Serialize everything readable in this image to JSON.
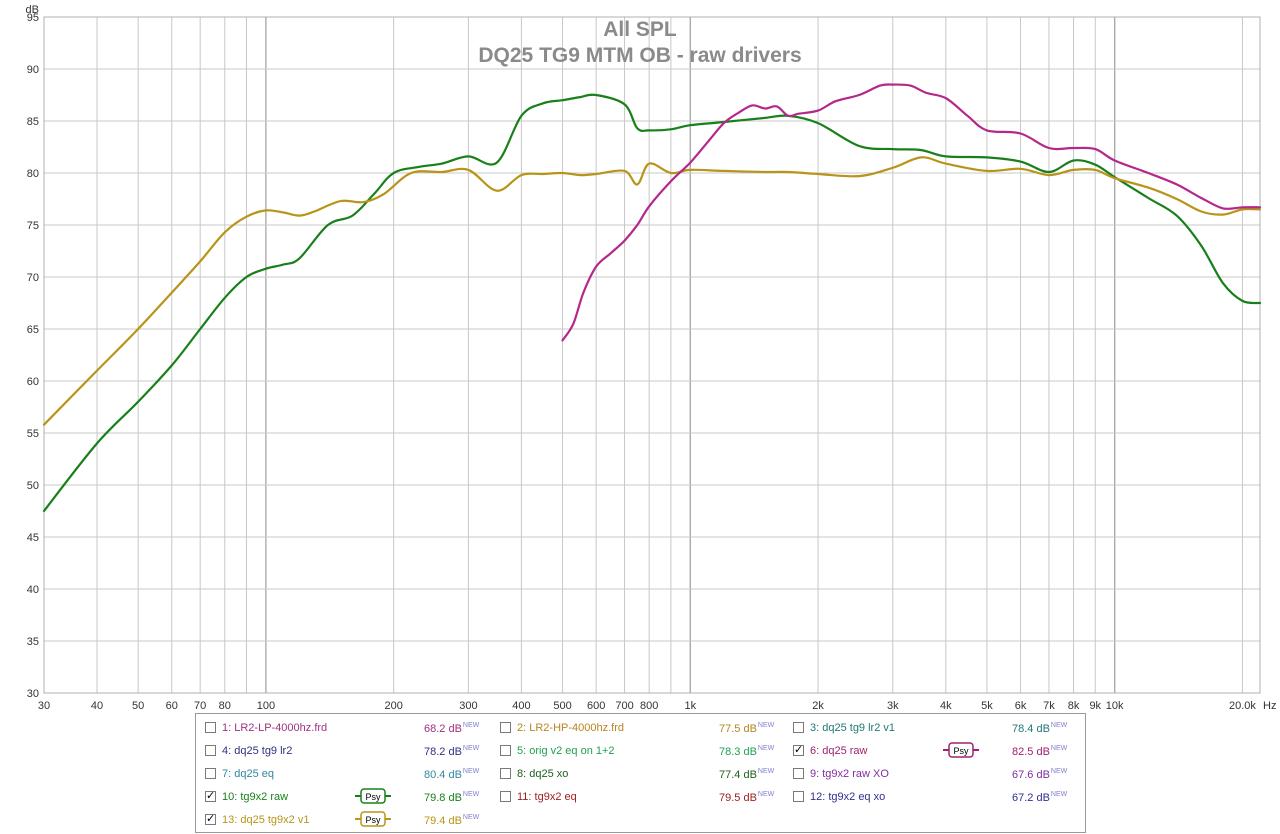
{
  "title_lines": [
    "All SPL",
    "DQ25 TG9 MTM OB - raw drivers"
  ],
  "chart_data": {
    "type": "line",
    "title": "All SPL\nDQ25 TG9 MTM OB - raw drivers",
    "xlabel": "Hz",
    "ylabel": "dB",
    "x_scale": "log",
    "xlim": [
      30,
      22000
    ],
    "ylim": [
      30,
      95
    ],
    "grid": true,
    "legend_placement": "bottom",
    "y_ticks": [
      "30",
      "35",
      "40",
      "45",
      "50",
      "55",
      "60",
      "65",
      "70",
      "75",
      "80",
      "85",
      "90",
      "95"
    ],
    "x_ticks": [
      {
        "v": 30,
        "l": "30"
      },
      {
        "v": 40,
        "l": "40"
      },
      {
        "v": 50,
        "l": "50"
      },
      {
        "v": 60,
        "l": "60"
      },
      {
        "v": 70,
        "l": "70"
      },
      {
        "v": 80,
        "l": "80"
      },
      {
        "v": 100,
        "l": "100"
      },
      {
        "v": 200,
        "l": "200"
      },
      {
        "v": 300,
        "l": "300"
      },
      {
        "v": 400,
        "l": "400"
      },
      {
        "v": 500,
        "l": "500"
      },
      {
        "v": 600,
        "l": "600"
      },
      {
        "v": 700,
        "l": "700"
      },
      {
        "v": 800,
        "l": "800"
      },
      {
        "v": 1000,
        "l": "1k"
      },
      {
        "v": 2000,
        "l": "2k"
      },
      {
        "v": 3000,
        "l": "3k"
      },
      {
        "v": 4000,
        "l": "4k"
      },
      {
        "v": 5000,
        "l": "5k"
      },
      {
        "v": 6000,
        "l": "6k"
      },
      {
        "v": 7000,
        "l": "7k"
      },
      {
        "v": 8000,
        "l": "8k"
      },
      {
        "v": 9000,
        "l": "9k"
      },
      {
        "v": 10000,
        "l": "10k"
      },
      {
        "v": 20000,
        "l": "20.0k"
      }
    ],
    "x_unit_label": "Hz",
    "series": [
      {
        "name": "10: tg9x2 raw",
        "color": "#18801a",
        "x": [
          30,
          40,
          50,
          60,
          70,
          80,
          90,
          100,
          110,
          120,
          140,
          160,
          180,
          200,
          230,
          260,
          300,
          350,
          400,
          450,
          500,
          550,
          600,
          700,
          750,
          800,
          900,
          1000,
          1200,
          1500,
          1700,
          2000,
          2500,
          3000,
          3500,
          4000,
          5000,
          6000,
          7000,
          8000,
          9000,
          10000,
          12000,
          14000,
          16000,
          18000,
          20000,
          22000
        ],
        "y": [
          47.5,
          54.0,
          58.0,
          61.5,
          65.0,
          68.0,
          70.0,
          70.8,
          71.2,
          71.8,
          75.0,
          75.9,
          78.0,
          80.0,
          80.6,
          80.9,
          81.6,
          81.0,
          85.5,
          86.7,
          87.0,
          87.3,
          87.5,
          86.6,
          84.3,
          84.1,
          84.2,
          84.6,
          84.9,
          85.3,
          85.5,
          84.8,
          82.6,
          82.3,
          82.2,
          81.6,
          81.5,
          81.1,
          80.1,
          81.2,
          80.8,
          79.6,
          77.6,
          75.9,
          73.0,
          69.4,
          67.7,
          67.5
        ]
      },
      {
        "name": "13: dq25 tg9x2 v1",
        "color": "#b89418",
        "x": [
          30,
          40,
          50,
          60,
          70,
          80,
          90,
          100,
          110,
          120,
          130,
          150,
          170,
          190,
          220,
          260,
          300,
          350,
          400,
          450,
          500,
          550,
          600,
          700,
          750,
          800,
          900,
          1000,
          1200,
          1500,
          1700,
          2000,
          2500,
          3000,
          3500,
          4000,
          5000,
          6000,
          7000,
          8000,
          9000,
          10000,
          12000,
          14000,
          16000,
          18000,
          20000,
          22000
        ],
        "y": [
          55.8,
          61.0,
          65.0,
          68.5,
          71.5,
          74.3,
          75.8,
          76.4,
          76.2,
          75.9,
          76.3,
          77.3,
          77.2,
          78.0,
          80.0,
          80.1,
          80.3,
          78.3,
          79.8,
          79.9,
          80.0,
          79.8,
          79.9,
          80.2,
          78.9,
          80.9,
          80.0,
          80.3,
          80.2,
          80.1,
          80.1,
          79.9,
          79.7,
          80.5,
          81.5,
          80.9,
          80.2,
          80.4,
          79.8,
          80.3,
          80.3,
          79.5,
          78.6,
          77.5,
          76.3,
          76.0,
          76.5,
          76.5
        ]
      },
      {
        "name": "6: dq25 raw",
        "color": "#b4288c",
        "x": [
          500,
          530,
          560,
          600,
          650,
          700,
          750,
          800,
          900,
          1000,
          1100,
          1200,
          1300,
          1400,
          1500,
          1600,
          1700,
          1800,
          2000,
          2200,
          2500,
          2800,
          3000,
          3300,
          3600,
          4000,
          4500,
          5000,
          6000,
          7000,
          8000,
          9000,
          10000,
          12000,
          14000,
          16000,
          18000,
          20000,
          22000
        ],
        "y": [
          63.9,
          65.5,
          68.5,
          71.0,
          72.3,
          73.5,
          75.0,
          76.8,
          79.2,
          81.0,
          83.0,
          84.8,
          85.8,
          86.5,
          86.2,
          86.4,
          85.5,
          85.7,
          86.0,
          86.9,
          87.5,
          88.4,
          88.5,
          88.4,
          87.7,
          87.2,
          85.5,
          84.1,
          83.8,
          82.4,
          82.4,
          82.3,
          81.2,
          80.0,
          78.9,
          77.6,
          76.6,
          76.7,
          76.7
        ]
      }
    ]
  },
  "legend": {
    "items": [
      {
        "label": "1: LR2-LP-4000hz.frd",
        "value": "68.2 dB",
        "sup": "NEW",
        "checked": false,
        "psy": false,
        "color": "#a03080",
        "col": 0,
        "row": 0
      },
      {
        "label": "2: LR2-HP-4000hz.frd",
        "value": "77.5 dB",
        "sup": "NEW",
        "checked": false,
        "psy": false,
        "color": "#b88420",
        "col": 1,
        "row": 0
      },
      {
        "label": "3: dq25 tg9 lr2 v1",
        "value": "78.4 dB",
        "sup": "NEW",
        "checked": false,
        "psy": false,
        "color": "#207878",
        "col": 2,
        "row": 0
      },
      {
        "label": "4: dq25 tg9 lr2",
        "value": "78.2 dB",
        "sup": "NEW",
        "checked": false,
        "psy": false,
        "color": "#303080",
        "col": 0,
        "row": 1
      },
      {
        "label": "5: orig v2 eq on 1+2",
        "value": "78.3 dB",
        "sup": "NEW",
        "checked": false,
        "psy": false,
        "color": "#20a050",
        "col": 1,
        "row": 1
      },
      {
        "label": "6: dq25 raw",
        "value": "82.5 dB",
        "sup": "NEW",
        "checked": true,
        "psy": true,
        "color": "#a02070",
        "col": 2,
        "row": 1
      },
      {
        "label": "7: dq25 eq",
        "value": "80.4 dB",
        "sup": "NEW",
        "checked": false,
        "psy": false,
        "color": "#3088a0",
        "col": 0,
        "row": 2
      },
      {
        "label": "8: dq25 xo",
        "value": "77.4 dB",
        "sup": "NEW",
        "checked": false,
        "psy": false,
        "color": "#206020",
        "col": 1,
        "row": 2
      },
      {
        "label": "9: tg9x2 raw XO",
        "value": "67.6 dB",
        "sup": "NEW",
        "checked": false,
        "psy": false,
        "color": "#8030a0",
        "col": 2,
        "row": 2
      },
      {
        "label": "10: tg9x2 raw",
        "value": "79.8 dB",
        "sup": "NEW",
        "checked": true,
        "psy": true,
        "color": "#18801a",
        "col": 0,
        "row": 3
      },
      {
        "label": "11: tg9x2 eq",
        "value": "79.5 dB",
        "sup": "NEW",
        "checked": false,
        "psy": false,
        "color": "#a02020",
        "col": 1,
        "row": 3
      },
      {
        "label": "12: tg9x2 eq xo",
        "value": "67.2 dB",
        "sup": "NEW",
        "checked": false,
        "psy": false,
        "color": "#303090",
        "col": 2,
        "row": 3
      },
      {
        "label": "13: dq25 tg9x2 v1",
        "value": "79.4 dB",
        "sup": "NEW",
        "checked": true,
        "psy": true,
        "color": "#b89418",
        "col": 0,
        "row": 4
      }
    ],
    "psy_label": "Psy"
  }
}
